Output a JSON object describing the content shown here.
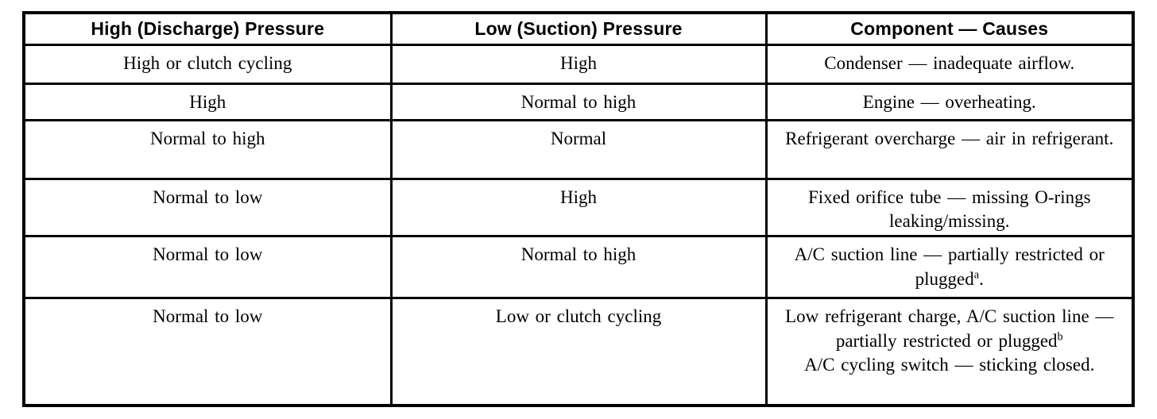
{
  "colors": {
    "background": "#ffffff",
    "border": "#000000",
    "text": "#000000"
  },
  "table": {
    "headers": [
      "High (Discharge) Pressure",
      "Low (Suction) Pressure",
      "Component — Causes"
    ],
    "rows": [
      [
        [
          {
            "t": "High or clutch cycling"
          }
        ],
        [
          {
            "t": "High"
          }
        ],
        [
          {
            "t": "Condenser — inadequate airflow."
          }
        ]
      ],
      [
        [
          {
            "t": "High"
          }
        ],
        [
          {
            "t": "Normal to high"
          }
        ],
        [
          {
            "t": "Engine — overheating."
          }
        ]
      ],
      [
        [
          {
            "t": "Normal to high"
          }
        ],
        [
          {
            "t": "Normal"
          }
        ],
        [
          {
            "t": "Refrigerant overcharge — air in refrigerant."
          }
        ]
      ],
      [
        [
          {
            "t": "Normal to low"
          }
        ],
        [
          {
            "t": "High"
          }
        ],
        [
          {
            "t": "Fixed orifice tube — missing O-rings leaking/missing."
          }
        ]
      ],
      [
        [
          {
            "t": "Normal to low"
          }
        ],
        [
          {
            "t": "Normal to high"
          }
        ],
        [
          {
            "t": "A/C suction line — partially restricted or plugged"
          },
          {
            "sup": "a"
          },
          {
            "t": "."
          }
        ]
      ],
      [
        [
          {
            "t": "Normal to low"
          }
        ],
        [
          {
            "t": "Low or clutch cycling"
          }
        ],
        [
          {
            "t": "Low refrigerant charge, A/C suction line — partially restricted or plugged"
          },
          {
            "sup": "b"
          },
          {
            "br": true
          },
          {
            "t": "A/C cycling switch — sticking closed."
          }
        ]
      ]
    ]
  }
}
